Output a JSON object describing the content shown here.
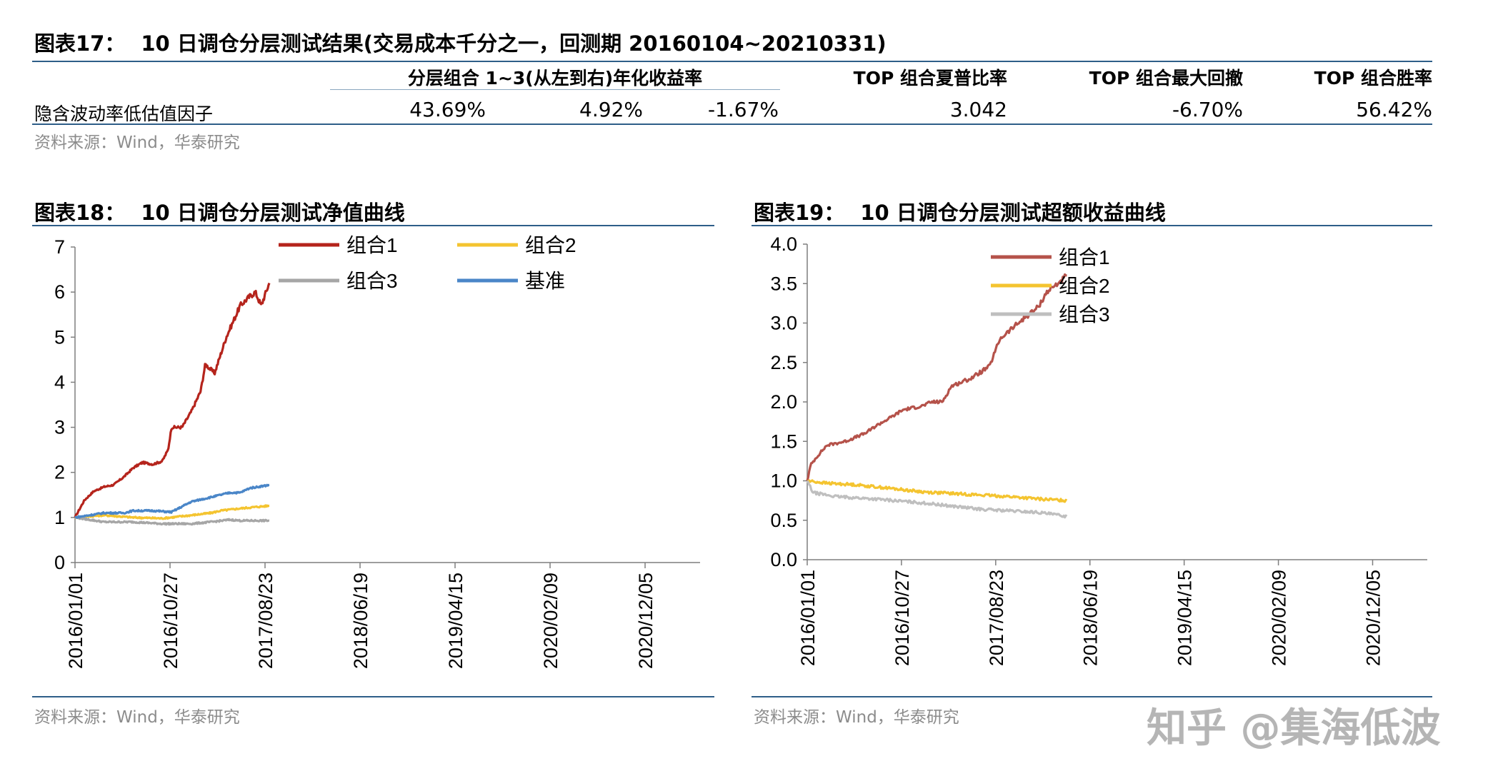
{
  "table": {
    "title_num": "图表17：",
    "title_text": "10 日调仓分层测试结果(交易成本千分之一，回测期 20160104~20210331)",
    "group_header": "分层组合 1~3(从左到右)年化收益率",
    "col_sharpe": "TOP 组合夏普比率",
    "col_drawdown": "TOP  组合最大回撤",
    "col_winrate": "TOP  组合胜率",
    "row_label": "隐含波动率低估值因子",
    "values": [
      "43.69%",
      "4.92%",
      "-1.67%",
      "3.042",
      "-6.70%",
      "56.42%"
    ],
    "source": "资料来源：Wind，华泰研究"
  },
  "fig18": {
    "title_num": "图表18：",
    "title_text": "10 日调仓分层测试净值曲线",
    "source": "资料来源：Wind，华泰研究"
  },
  "fig19": {
    "title_num": "图表19：",
    "title_text": "10 日调仓分层测试超额收益曲线",
    "source": "资料来源：Wind，华泰研究"
  },
  "watermark": "知乎 @集海低波",
  "chart_data": [
    {
      "type": "line",
      "title": "10 日调仓分层测试净值曲线",
      "x_ticks": [
        "2016/01/01",
        "2016/10/27",
        "2017/08/23",
        "2018/06/19",
        "2019/04/15",
        "2020/02/09",
        "2020/12/05"
      ],
      "x_range": [
        "2016/01/01",
        "2021/03/31"
      ],
      "ylim": [
        0,
        7
      ],
      "y_ticks": [
        0,
        1,
        2,
        3,
        4,
        5,
        6,
        7
      ],
      "legend": "top-left",
      "series": [
        {
          "name": "组合1",
          "color": "#b5241c",
          "points": [
            [
              0,
              1.0
            ],
            [
              0.08,
              1.38
            ],
            [
              0.16,
              1.58
            ],
            [
              0.25,
              1.68
            ],
            [
              0.33,
              1.72
            ],
            [
              0.42,
              1.9
            ],
            [
              0.5,
              2.1
            ],
            [
              0.58,
              2.22
            ],
            [
              0.67,
              2.18
            ],
            [
              0.75,
              2.25
            ],
            [
              0.8,
              2.5
            ],
            [
              0.83,
              3.0
            ],
            [
              0.92,
              3.0
            ],
            [
              1.0,
              3.35
            ],
            [
              1.08,
              3.8
            ],
            [
              1.12,
              4.4
            ],
            [
              1.2,
              4.2
            ],
            [
              1.3,
              5.0
            ],
            [
              1.42,
              5.7
            ],
            [
              1.5,
              5.9
            ],
            [
              1.55,
              6.0
            ],
            [
              1.6,
              5.7
            ],
            [
              1.67,
              6.2
            ]
          ]
        },
        {
          "name": "组合2",
          "color": "#f4c430",
          "points": [
            [
              0,
              1.0
            ],
            [
              0.25,
              1.05
            ],
            [
              0.5,
              1.0
            ],
            [
              0.75,
              0.98
            ],
            [
              1.0,
              1.05
            ],
            [
              1.17,
              1.1
            ],
            [
              1.25,
              1.15
            ],
            [
              1.42,
              1.2
            ],
            [
              1.5,
              1.22
            ],
            [
              1.67,
              1.26
            ]
          ]
        },
        {
          "name": "组合3",
          "color": "#a6a6a6",
          "points": [
            [
              0,
              1.0
            ],
            [
              0.25,
              0.9
            ],
            [
              0.5,
              0.9
            ],
            [
              0.75,
              0.86
            ],
            [
              1.0,
              0.86
            ],
            [
              1.17,
              0.9
            ],
            [
              1.33,
              0.95
            ],
            [
              1.42,
              0.93
            ],
            [
              1.67,
              0.93
            ]
          ]
        },
        {
          "name": "基准",
          "color": "#4a86c8",
          "points": [
            [
              0,
              1.0
            ],
            [
              0.25,
              1.1
            ],
            [
              0.42,
              1.1
            ],
            [
              0.5,
              1.15
            ],
            [
              0.67,
              1.15
            ],
            [
              0.83,
              1.12
            ],
            [
              1.0,
              1.35
            ],
            [
              1.17,
              1.45
            ],
            [
              1.33,
              1.55
            ],
            [
              1.42,
              1.55
            ],
            [
              1.5,
              1.65
            ],
            [
              1.67,
              1.72
            ]
          ]
        }
      ]
    },
    {
      "type": "line",
      "title": "10 日调仓分层测试超额收益曲线",
      "x_ticks": [
        "2016/01/01",
        "2016/10/27",
        "2017/08/23",
        "2018/06/19",
        "2019/04/15",
        "2020/02/09",
        "2020/12/05"
      ],
      "x_range": [
        "2016/01/01",
        "2021/03/31"
      ],
      "ylim": [
        0,
        4
      ],
      "y_ticks": [
        "0.0",
        "0.5",
        "1.0",
        "1.5",
        "2.0",
        "2.5",
        "3.0",
        "3.5",
        "4.0"
      ],
      "legend": "top-left",
      "series": [
        {
          "name": "组合1",
          "color": "#b5524a",
          "points": [
            [
              0,
              1.0
            ],
            [
              0.03,
              1.2
            ],
            [
              0.08,
              1.3
            ],
            [
              0.17,
              1.45
            ],
            [
              0.33,
              1.5
            ],
            [
              0.5,
              1.6
            ],
            [
              0.6,
              1.7
            ],
            [
              0.72,
              1.8
            ],
            [
              0.83,
              1.9
            ],
            [
              1.0,
              1.95
            ],
            [
              1.08,
              2.0
            ],
            [
              1.17,
              2.0
            ],
            [
              1.25,
              2.2
            ],
            [
              1.42,
              2.3
            ],
            [
              1.58,
              2.45
            ],
            [
              1.67,
              2.8
            ],
            [
              1.83,
              3.0
            ],
            [
              2.0,
              3.2
            ],
            [
              2.08,
              3.4
            ],
            [
              2.17,
              3.5
            ],
            [
              2.25,
              3.6
            ]
          ]
        },
        {
          "name": "组合2",
          "color": "#f4c430",
          "points": [
            [
              0,
              1.0
            ],
            [
              0.17,
              0.97
            ],
            [
              0.42,
              0.95
            ],
            [
              0.75,
              0.9
            ],
            [
              1.0,
              0.86
            ],
            [
              1.25,
              0.84
            ],
            [
              1.5,
              0.82
            ],
            [
              1.75,
              0.8
            ],
            [
              2.0,
              0.77
            ],
            [
              2.25,
              0.75
            ]
          ]
        },
        {
          "name": "组合3",
          "color": "#bfbfbf",
          "points": [
            [
              0,
              1.0
            ],
            [
              0.05,
              0.85
            ],
            [
              0.25,
              0.8
            ],
            [
              0.58,
              0.77
            ],
            [
              1.0,
              0.72
            ],
            [
              1.25,
              0.68
            ],
            [
              1.5,
              0.64
            ],
            [
              1.75,
              0.62
            ],
            [
              2.0,
              0.6
            ],
            [
              2.25,
              0.55
            ]
          ]
        }
      ]
    }
  ]
}
